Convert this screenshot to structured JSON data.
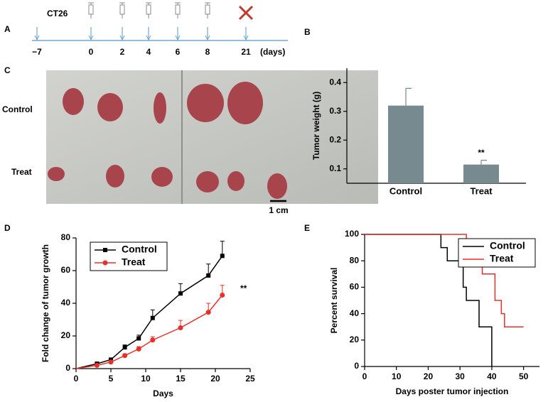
{
  "panel_labels": [
    "A",
    "B",
    "C",
    "D",
    "E"
  ],
  "timeline": {
    "cell_line": "CT26",
    "days": [
      "−7",
      "0",
      "2",
      "4",
      "6",
      "8",
      "21"
    ],
    "unit": "(days)"
  },
  "photo": {
    "rows": [
      "Control",
      "Treat"
    ],
    "scale_bar": "1 cm"
  },
  "chart_data": [
    {
      "type": "bar",
      "ylabel": "Tumor weight (g)",
      "categories": [
        "Control",
        "Treat"
      ],
      "values": [
        0.32,
        0.115
      ],
      "errors": [
        0.06,
        0.015
      ],
      "color": "#768a8f",
      "annotation": "**",
      "ylim": [
        0.05,
        0.45
      ],
      "yticks": [
        0.1,
        0.2,
        0.3,
        0.4
      ]
    },
    {
      "type": "line",
      "xlabel": "Days",
      "ylabel": "Fold change of tumor growth",
      "x": [
        0,
        3,
        5,
        7,
        9,
        11,
        15,
        19,
        21
      ],
      "series": [
        {
          "name": "Control",
          "color": "#000000",
          "marker": "square",
          "values": [
            0,
            3,
            5.5,
            13,
            18.5,
            31,
            46,
            57,
            69
          ],
          "errors": [
            0,
            1,
            1,
            1.5,
            2,
            5,
            6,
            7,
            9
          ]
        },
        {
          "name": "Treat",
          "color": "#e8302a",
          "marker": "circle",
          "values": [
            0,
            2,
            4,
            8,
            12,
            17.5,
            25,
            34.5,
            45
          ],
          "errors": [
            0,
            0.5,
            1,
            1,
            1.5,
            2,
            4.5,
            5.5,
            6
          ]
        }
      ],
      "annotation": "**",
      "xlim": [
        0,
        25
      ],
      "xticks": [
        0,
        5,
        10,
        15,
        20,
        25
      ],
      "ylim": [
        0,
        80
      ],
      "yticks": [
        0,
        20,
        40,
        60,
        80
      ],
      "legend": "upper left"
    },
    {
      "type": "step",
      "xlabel": "Days poster tumor injection",
      "ylabel": "Percent survival",
      "series": [
        {
          "name": "Control",
          "color": "#000000",
          "x": [
            0,
            24,
            26,
            31,
            32,
            36,
            40
          ],
          "values": [
            100,
            90,
            80,
            60,
            50,
            30,
            0
          ]
        },
        {
          "name": "Treat",
          "color": "#e8302a",
          "x": [
            0,
            32,
            34,
            37,
            41,
            43,
            44,
            50
          ],
          "values": [
            100,
            90,
            80,
            70,
            50,
            40,
            30,
            30
          ]
        }
      ],
      "xlim": [
        0,
        55
      ],
      "xticks": [
        0,
        10,
        20,
        30,
        40,
        50
      ],
      "ylim": [
        0,
        100
      ],
      "yticks": [
        0,
        20,
        40,
        60,
        80,
        100
      ],
      "legend": "upper right"
    }
  ]
}
